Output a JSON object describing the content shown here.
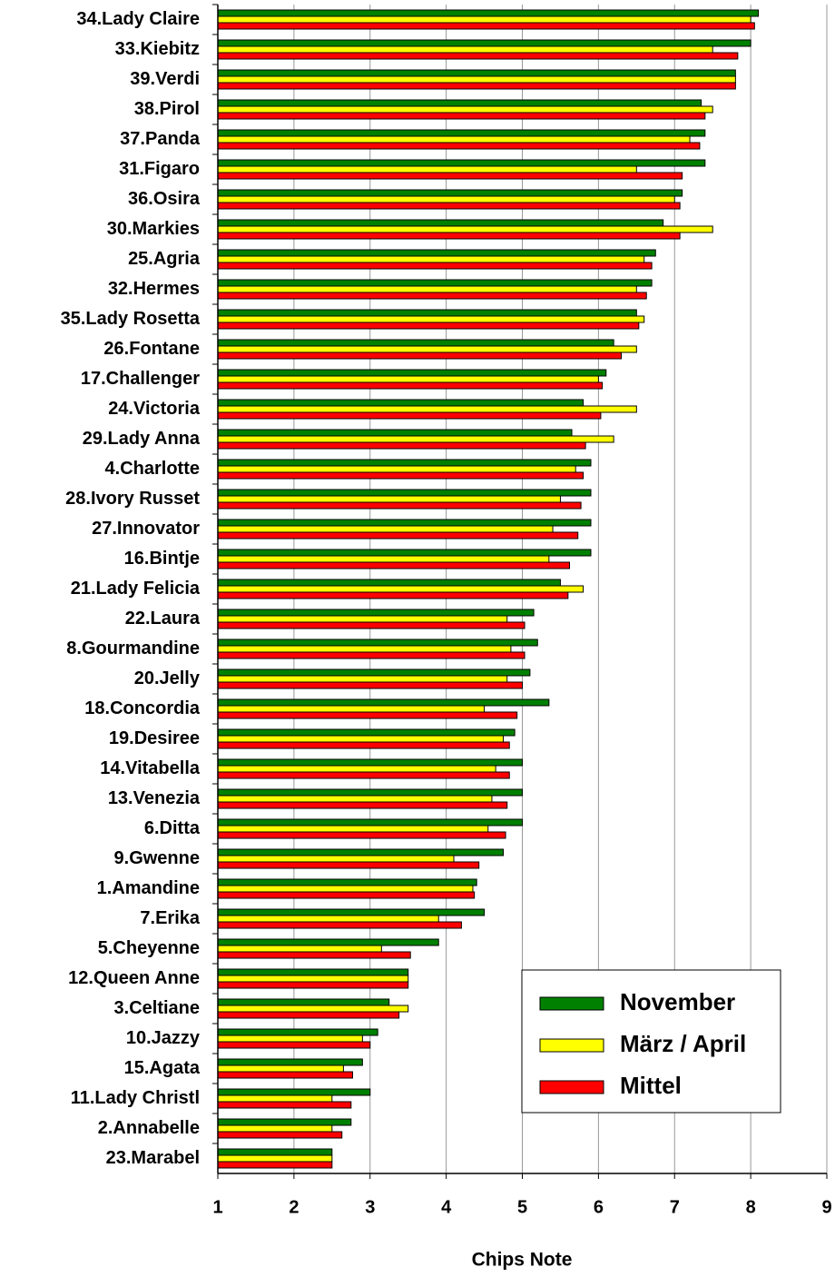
{
  "chart_data": {
    "type": "barh",
    "x_label": "Chips Note",
    "categories": [
      "34.Lady Claire",
      "33.Kiebitz",
      "39.Verdi",
      "38.Pirol",
      "37.Panda",
      "31.Figaro",
      "36.Osira",
      "30.Markies",
      "25.Agria",
      "32.Hermes",
      "35.Lady Rosetta",
      "26.Fontane",
      "17.Challenger",
      "24.Victoria",
      "29.Lady Anna",
      "4.Charlotte",
      "28.Ivory Russet",
      "27.Innovator",
      "16.Bintje",
      "21.Lady Felicia",
      "22.Laura",
      "8.Gourmandine",
      "20.Jelly",
      "18.Concordia",
      "19.Desiree",
      "14.Vitabella",
      "13.Venezia",
      "6.Ditta",
      "9.Gwenne",
      "1.Amandine",
      "7.Erika",
      "5.Cheyenne",
      "12.Queen Anne",
      "3.Celtiane",
      "10.Jazzy",
      "15.Agata",
      "11.Lady Christl",
      "2.Annabelle",
      "23.Marabel"
    ],
    "series": [
      {
        "name": "November",
        "color": "#008000",
        "values": [
          8.1,
          8.0,
          7.8,
          7.35,
          7.4,
          7.4,
          7.1,
          6.85,
          6.75,
          6.7,
          6.5,
          6.2,
          6.1,
          5.8,
          5.65,
          5.9,
          5.9,
          5.9,
          5.9,
          5.5,
          5.15,
          5.2,
          5.1,
          5.35,
          4.9,
          5.0,
          5.0,
          5.0,
          4.75,
          4.4,
          4.5,
          3.9,
          3.5,
          3.25,
          3.1,
          2.9,
          3.0,
          2.75,
          2.5
        ]
      },
      {
        "name": "März / April",
        "color": "#ffff00",
        "values": [
          8.0,
          7.5,
          7.8,
          7.5,
          7.2,
          6.5,
          7.0,
          7.5,
          6.6,
          6.5,
          6.6,
          6.5,
          6.0,
          6.5,
          6.2,
          5.7,
          5.5,
          5.4,
          5.35,
          5.8,
          4.8,
          4.85,
          4.8,
          4.5,
          4.75,
          4.65,
          4.6,
          4.55,
          4.1,
          4.35,
          3.9,
          3.15,
          3.5,
          3.5,
          2.9,
          2.65,
          2.5,
          2.5,
          2.5
        ]
      },
      {
        "name": "Mittel",
        "color": "#ff0000",
        "values": [
          8.05,
          7.83,
          7.8,
          7.4,
          7.33,
          7.1,
          7.07,
          7.07,
          6.7,
          6.63,
          6.53,
          6.3,
          6.05,
          6.03,
          5.83,
          5.8,
          5.77,
          5.73,
          5.62,
          5.6,
          5.03,
          5.03,
          5.0,
          4.93,
          4.83,
          4.83,
          4.8,
          4.78,
          4.43,
          4.37,
          4.2,
          3.53,
          3.5,
          3.38,
          3.0,
          2.77,
          2.75,
          2.63,
          2.5
        ]
      }
    ],
    "xlim": [
      1,
      9
    ],
    "xticks": [
      1,
      2,
      3,
      4,
      5,
      6,
      7,
      8,
      9
    ],
    "grid": true,
    "legend": "lower right"
  }
}
